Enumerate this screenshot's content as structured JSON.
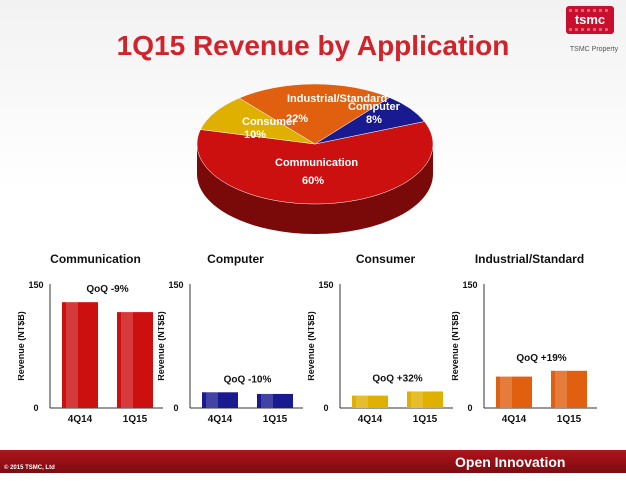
{
  "title": "1Q15 Revenue by Application",
  "logo_text": "tsmc",
  "property_label": "TSMC Property",
  "footer": {
    "copyright": "© 2015 TSMC, Ltd",
    "platform": "Open Innovation Platform®"
  },
  "colors": {
    "communication": "#cc1010",
    "computer": "#1a1a90",
    "consumer": "#e0b000",
    "industrial": "#e06010",
    "title": "#d2232a"
  },
  "pie_labels": {
    "communication": "Communication",
    "communication_pct": "60%",
    "computer": "Computer",
    "computer_pct": "8%",
    "consumer": "Consumer",
    "consumer_pct": "10%",
    "industrial": "Industrial/Standard",
    "industrial_pct": "22%"
  },
  "chart_data": [
    {
      "type": "pie",
      "title": "1Q15 Revenue by Application",
      "categories": [
        "Communication",
        "Computer",
        "Consumer",
        "Industrial/Standard"
      ],
      "values": [
        60,
        8,
        10,
        22
      ],
      "unit": "%"
    },
    {
      "type": "bar",
      "title": "Communication",
      "categories": [
        "4Q14",
        "1Q15"
      ],
      "values": [
        128,
        116
      ],
      "ylabel": "Revenue (NT$B)",
      "ylim": [
        0,
        150
      ],
      "yticks": [
        "150",
        "0"
      ],
      "annotation": "QoQ -9%",
      "color": "#cc1010"
    },
    {
      "type": "bar",
      "title": "Computer",
      "categories": [
        "4Q14",
        "1Q15"
      ],
      "values": [
        19,
        17
      ],
      "ylabel": "Revenue (NT$B)",
      "ylim": [
        0,
        150
      ],
      "yticks": [
        "150",
        "0"
      ],
      "annotation": "QoQ -10%",
      "color": "#1a1a90"
    },
    {
      "type": "bar",
      "title": "Consumer",
      "categories": [
        "4Q14",
        "1Q15"
      ],
      "values": [
        15,
        20
      ],
      "ylabel": "Revenue (NT$B)",
      "ylim": [
        0,
        150
      ],
      "yticks": [
        "150",
        "0"
      ],
      "annotation": "QoQ +32%",
      "color": "#e0b000"
    },
    {
      "type": "bar",
      "title": "Industrial/Standard",
      "categories": [
        "4Q14",
        "1Q15"
      ],
      "values": [
        38,
        45
      ],
      "ylabel": "Revenue (NT$B)",
      "ylim": [
        0,
        150
      ],
      "yticks": [
        "150",
        "0"
      ],
      "annotation": "QoQ +19%",
      "color": "#e06010"
    }
  ]
}
